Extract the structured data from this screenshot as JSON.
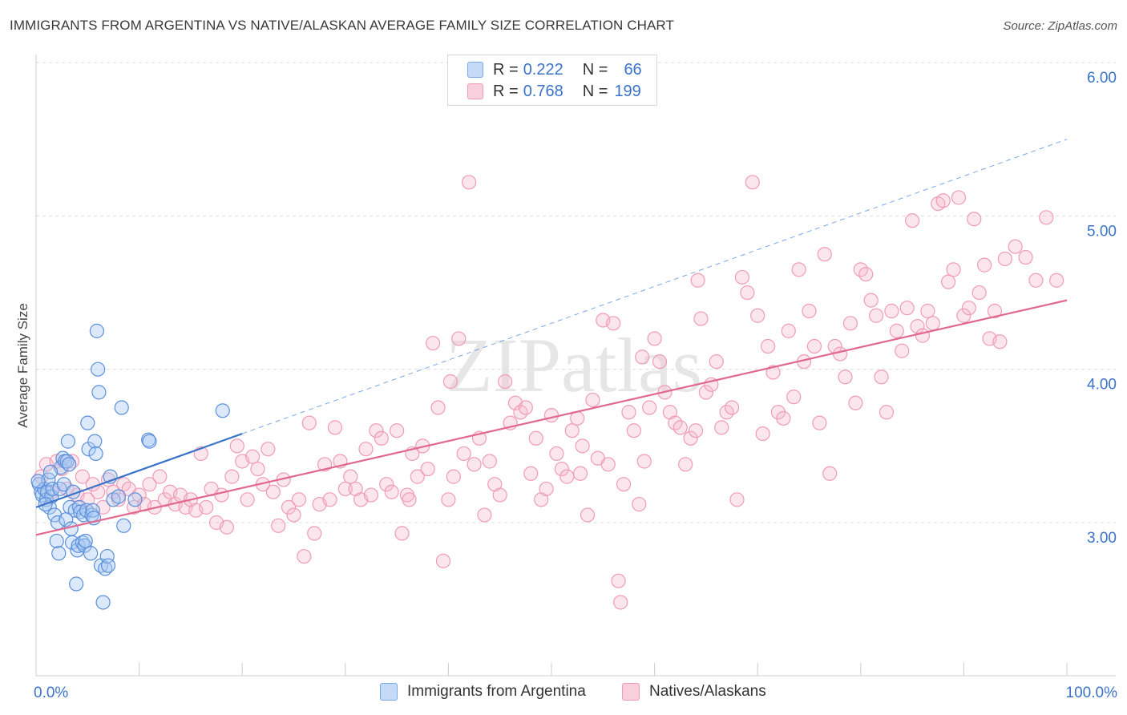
{
  "title": "IMMIGRANTS FROM ARGENTINA VS NATIVE/ALASKAN AVERAGE FAMILY SIZE CORRELATION CHART",
  "source": "Source: ZipAtlas.com",
  "watermark": "ZIPatlas",
  "legend": {
    "rows": [
      {
        "r_label": "R =",
        "r_value": "0.222",
        "n_label": "N =",
        "n_value": "66",
        "color": "#a7c7f2"
      },
      {
        "r_label": "R =",
        "r_value": "0.768",
        "n_label": "N =",
        "n_value": "199",
        "color": "#f6b8cc"
      }
    ]
  },
  "bottom_legend": [
    {
      "label": "Immigrants from Argentina",
      "color": "#a7c7f2"
    },
    {
      "label": "Natives/Alaskans",
      "color": "#f6b8cc"
    }
  ],
  "chart_data": {
    "type": "scatter",
    "title": "IMMIGRANTS FROM ARGENTINA VS NATIVE/ALASKAN AVERAGE FAMILY SIZE CORRELATION CHART",
    "xlabel": "",
    "ylabel": "Average Family Size",
    "xlim": [
      0,
      100
    ],
    "ylim": [
      2.0,
      6.0
    ],
    "x_tick_labels": [
      "0.0%",
      "100.0%"
    ],
    "y_ticks": [
      3.0,
      4.0,
      5.0,
      6.0
    ],
    "y_tick_labels": [
      "3.00",
      "4.00",
      "5.00",
      "6.00"
    ],
    "grid": true,
    "legend_position": "top-center",
    "series": [
      {
        "name": "Immigrants from Argentina",
        "color": "#6fa3e8",
        "trend_color": "#3b73c9",
        "trend": {
          "x_solid": [
            0,
            20
          ],
          "y_solid": [
            3.1,
            3.58
          ],
          "x_dashed": [
            20,
            100
          ],
          "y_dashed": [
            3.58,
            5.5
          ]
        },
        "points": [
          [
            0.3,
            3.25
          ],
          [
            0.5,
            3.2
          ],
          [
            0.6,
            3.18
          ],
          [
            0.8,
            3.22
          ],
          [
            1.0,
            3.15
          ],
          [
            1.1,
            3.2
          ],
          [
            1.2,
            3.28
          ],
          [
            1.3,
            3.1
          ],
          [
            1.5,
            3.17
          ],
          [
            1.6,
            3.22
          ],
          [
            1.8,
            3.05
          ],
          [
            2.0,
            2.88
          ],
          [
            2.1,
            3.0
          ],
          [
            2.2,
            2.8
          ],
          [
            2.3,
            3.22
          ],
          [
            2.4,
            3.36
          ],
          [
            2.6,
            3.42
          ],
          [
            2.7,
            3.25
          ],
          [
            2.8,
            3.4
          ],
          [
            3.0,
            3.4
          ],
          [
            3.1,
            3.53
          ],
          [
            3.2,
            3.38
          ],
          [
            3.3,
            3.1
          ],
          [
            3.5,
            2.87
          ],
          [
            3.6,
            3.2
          ],
          [
            3.8,
            3.08
          ],
          [
            3.9,
            2.6
          ],
          [
            4.0,
            2.82
          ],
          [
            4.1,
            2.85
          ],
          [
            4.2,
            3.1
          ],
          [
            4.3,
            3.07
          ],
          [
            4.5,
            2.87
          ],
          [
            4.6,
            3.05
          ],
          [
            4.7,
            2.85
          ],
          [
            4.8,
            2.88
          ],
          [
            4.9,
            3.08
          ],
          [
            5.0,
            3.65
          ],
          [
            5.1,
            3.48
          ],
          [
            5.3,
            2.8
          ],
          [
            5.4,
            3.05
          ],
          [
            5.5,
            3.08
          ],
          [
            5.6,
            3.03
          ],
          [
            5.7,
            3.53
          ],
          [
            5.8,
            3.45
          ],
          [
            5.9,
            4.25
          ],
          [
            6.0,
            4.0
          ],
          [
            6.1,
            3.85
          ],
          [
            6.3,
            2.72
          ],
          [
            6.5,
            2.48
          ],
          [
            6.7,
            2.7
          ],
          [
            6.9,
            2.78
          ],
          [
            7.0,
            2.72
          ],
          [
            7.2,
            3.3
          ],
          [
            7.5,
            3.15
          ],
          [
            8.0,
            3.17
          ],
          [
            8.3,
            3.75
          ],
          [
            8.5,
            2.98
          ],
          [
            9.6,
            3.15
          ],
          [
            10.9,
            3.54
          ],
          [
            11.0,
            3.53
          ],
          [
            18.1,
            3.73
          ],
          [
            0.2,
            3.27
          ],
          [
            0.9,
            3.12
          ],
          [
            1.4,
            3.33
          ],
          [
            2.9,
            3.02
          ],
          [
            3.4,
            2.96
          ]
        ]
      },
      {
        "name": "Natives/Alaskans",
        "color": "#f299b5",
        "trend_color": "#e0688f",
        "trend": {
          "x_solid": [
            0,
            100
          ],
          "y_solid": [
            2.92,
            4.45
          ]
        },
        "points": [
          [
            0.5,
            3.3
          ],
          [
            1.0,
            3.38
          ],
          [
            1.5,
            3.2
          ],
          [
            2.0,
            3.4
          ],
          [
            2.5,
            3.35
          ],
          [
            3.0,
            3.22
          ],
          [
            3.5,
            3.4
          ],
          [
            4.0,
            3.18
          ],
          [
            4.5,
            3.3
          ],
          [
            5.0,
            3.15
          ],
          [
            5.5,
            3.25
          ],
          [
            6.0,
            3.2
          ],
          [
            6.5,
            3.1
          ],
          [
            7.0,
            3.28
          ],
          [
            7.5,
            3.2
          ],
          [
            8.0,
            3.15
          ],
          [
            8.5,
            3.25
          ],
          [
            9.0,
            3.22
          ],
          [
            9.5,
            3.1
          ],
          [
            10.0,
            3.18
          ],
          [
            10.5,
            3.12
          ],
          [
            11.0,
            3.25
          ],
          [
            11.5,
            3.1
          ],
          [
            12.0,
            3.3
          ],
          [
            12.5,
            3.15
          ],
          [
            13.0,
            3.2
          ],
          [
            13.5,
            3.12
          ],
          [
            14.0,
            3.18
          ],
          [
            14.5,
            3.1
          ],
          [
            15.0,
            3.15
          ],
          [
            15.5,
            3.08
          ],
          [
            16.0,
            3.45
          ],
          [
            16.5,
            3.1
          ],
          [
            17.0,
            3.22
          ],
          [
            17.5,
            3.0
          ],
          [
            18.0,
            3.18
          ],
          [
            18.5,
            2.97
          ],
          [
            19.0,
            3.3
          ],
          [
            19.5,
            3.5
          ],
          [
            20.0,
            3.4
          ],
          [
            20.5,
            3.15
          ],
          [
            21.0,
            3.43
          ],
          [
            21.5,
            3.35
          ],
          [
            22.0,
            3.25
          ],
          [
            22.5,
            3.48
          ],
          [
            23.0,
            3.2
          ],
          [
            23.5,
            2.98
          ],
          [
            24.0,
            3.28
          ],
          [
            24.5,
            3.1
          ],
          [
            25.0,
            3.05
          ],
          [
            25.5,
            3.15
          ],
          [
            26.0,
            2.78
          ],
          [
            26.5,
            3.65
          ],
          [
            27.0,
            2.93
          ],
          [
            27.5,
            3.12
          ],
          [
            28.0,
            3.38
          ],
          [
            28.5,
            3.15
          ],
          [
            29.0,
            3.62
          ],
          [
            29.5,
            3.4
          ],
          [
            30.0,
            3.22
          ],
          [
            30.5,
            3.3
          ],
          [
            31.0,
            3.22
          ],
          [
            31.5,
            3.15
          ],
          [
            32.0,
            3.48
          ],
          [
            32.5,
            3.18
          ],
          [
            33.0,
            3.6
          ],
          [
            33.5,
            3.55
          ],
          [
            34.0,
            3.25
          ],
          [
            34.5,
            3.2
          ],
          [
            35.0,
            3.6
          ],
          [
            35.5,
            2.93
          ],
          [
            36.0,
            3.18
          ],
          [
            36.5,
            3.45
          ],
          [
            37.0,
            3.3
          ],
          [
            37.5,
            3.5
          ],
          [
            38.0,
            3.35
          ],
          [
            38.5,
            4.17
          ],
          [
            39.0,
            3.75
          ],
          [
            39.5,
            2.75
          ],
          [
            40.0,
            3.15
          ],
          [
            40.5,
            3.3
          ],
          [
            41.0,
            4.2
          ],
          [
            41.5,
            3.45
          ],
          [
            42.0,
            5.22
          ],
          [
            42.5,
            3.38
          ],
          [
            43.0,
            3.55
          ],
          [
            43.5,
            3.05
          ],
          [
            44.0,
            3.4
          ],
          [
            44.5,
            3.25
          ],
          [
            45.0,
            3.18
          ],
          [
            45.5,
            3.92
          ],
          [
            46.0,
            3.65
          ],
          [
            46.5,
            3.78
          ],
          [
            47.0,
            3.72
          ],
          [
            47.5,
            3.75
          ],
          [
            48.0,
            3.32
          ],
          [
            48.5,
            3.55
          ],
          [
            49.0,
            3.15
          ],
          [
            49.5,
            3.22
          ],
          [
            50.0,
            3.7
          ],
          [
            50.5,
            3.45
          ],
          [
            51.0,
            3.35
          ],
          [
            51.5,
            3.3
          ],
          [
            52.0,
            3.6
          ],
          [
            52.5,
            3.68
          ],
          [
            53.0,
            3.5
          ],
          [
            53.5,
            3.05
          ],
          [
            54.0,
            3.8
          ],
          [
            54.5,
            3.42
          ],
          [
            55.0,
            4.32
          ],
          [
            55.5,
            3.38
          ],
          [
            56.0,
            4.3
          ],
          [
            56.5,
            2.62
          ],
          [
            56.7,
            2.48
          ],
          [
            57.0,
            3.25
          ],
          [
            57.5,
            3.72
          ],
          [
            58.0,
            3.6
          ],
          [
            58.5,
            3.12
          ],
          [
            59.0,
            3.4
          ],
          [
            59.5,
            3.75
          ],
          [
            60.0,
            4.2
          ],
          [
            60.5,
            4.05
          ],
          [
            61.0,
            3.85
          ],
          [
            61.5,
            3.72
          ],
          [
            62.0,
            3.65
          ],
          [
            62.5,
            3.62
          ],
          [
            63.0,
            3.38
          ],
          [
            63.5,
            3.55
          ],
          [
            64.0,
            3.6
          ],
          [
            64.5,
            4.33
          ],
          [
            65.0,
            3.85
          ],
          [
            65.5,
            3.9
          ],
          [
            66.0,
            4.05
          ],
          [
            66.5,
            3.62
          ],
          [
            67.0,
            3.72
          ],
          [
            67.5,
            3.75
          ],
          [
            68.0,
            3.15
          ],
          [
            68.5,
            4.6
          ],
          [
            69.0,
            4.5
          ],
          [
            69.5,
            5.22
          ],
          [
            70.0,
            4.35
          ],
          [
            70.5,
            3.58
          ],
          [
            71.0,
            4.15
          ],
          [
            71.5,
            3.98
          ],
          [
            72.0,
            3.72
          ],
          [
            72.5,
            3.68
          ],
          [
            73.0,
            4.25
          ],
          [
            73.5,
            3.82
          ],
          [
            74.0,
            4.65
          ],
          [
            74.5,
            4.05
          ],
          [
            75.0,
            4.38
          ],
          [
            75.5,
            4.15
          ],
          [
            76.0,
            3.65
          ],
          [
            76.5,
            4.75
          ],
          [
            77.0,
            3.32
          ],
          [
            77.5,
            4.15
          ],
          [
            78.0,
            4.1
          ],
          [
            78.5,
            3.95
          ],
          [
            79.0,
            4.3
          ],
          [
            79.5,
            3.78
          ],
          [
            80.0,
            4.65
          ],
          [
            80.5,
            4.62
          ],
          [
            81.0,
            4.45
          ],
          [
            81.5,
            4.35
          ],
          [
            82.0,
            3.95
          ],
          [
            82.5,
            3.72
          ],
          [
            83.0,
            4.38
          ],
          [
            83.5,
            4.25
          ],
          [
            84.0,
            4.12
          ],
          [
            84.5,
            4.4
          ],
          [
            85.0,
            4.97
          ],
          [
            85.5,
            4.28
          ],
          [
            86.0,
            4.22
          ],
          [
            86.5,
            4.38
          ],
          [
            87.0,
            4.3
          ],
          [
            87.5,
            5.08
          ],
          [
            88.0,
            5.1
          ],
          [
            88.5,
            4.57
          ],
          [
            89.0,
            4.65
          ],
          [
            89.5,
            5.12
          ],
          [
            90.0,
            4.35
          ],
          [
            90.5,
            4.4
          ],
          [
            91.0,
            4.98
          ],
          [
            91.5,
            4.5
          ],
          [
            92.0,
            4.68
          ],
          [
            92.5,
            4.2
          ],
          [
            93.0,
            4.38
          ],
          [
            93.5,
            4.18
          ],
          [
            94.0,
            4.72
          ],
          [
            95.0,
            4.8
          ],
          [
            96.0,
            4.73
          ],
          [
            97.0,
            4.58
          ],
          [
            98.0,
            4.99
          ],
          [
            99.0,
            4.58
          ],
          [
            64.2,
            4.58
          ],
          [
            36.2,
            3.15
          ],
          [
            52.8,
            3.32
          ],
          [
            40.2,
            3.92
          ],
          [
            58.8,
            4.08
          ]
        ]
      }
    ]
  }
}
